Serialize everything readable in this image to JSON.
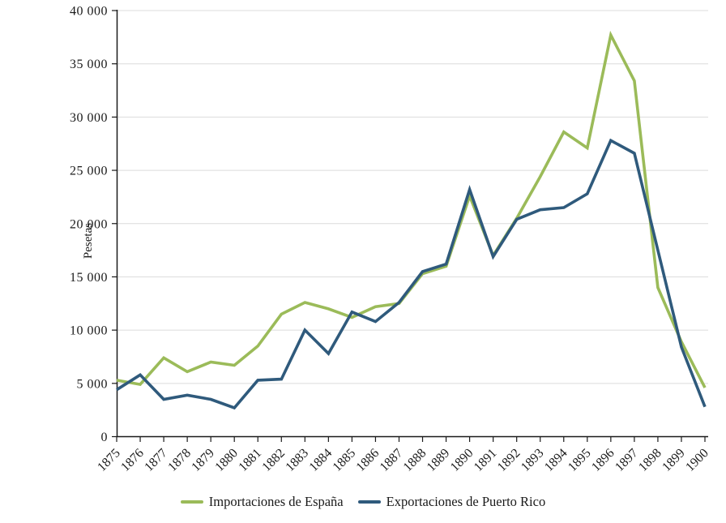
{
  "chart_data": {
    "type": "line",
    "x": [
      1875,
      1876,
      1877,
      1878,
      1879,
      1880,
      1881,
      1882,
      1883,
      1884,
      1885,
      1886,
      1887,
      1888,
      1889,
      1890,
      1891,
      1892,
      1893,
      1894,
      1895,
      1896,
      1897,
      1898,
      1899,
      1900
    ],
    "series": [
      {
        "name": "Importaciones de España",
        "color": "#9bbb59",
        "values": [
          5300,
          4900,
          7400,
          6100,
          7000,
          6700,
          8500,
          11500,
          12600,
          12000,
          11200,
          12200,
          12500,
          15300,
          16000,
          22600,
          17000,
          20500,
          24400,
          28600,
          27100,
          37700,
          33400,
          14000,
          8900,
          4600
        ]
      },
      {
        "name": "Exportaciones de Puerto Rico",
        "color": "#2f5a7c",
        "values": [
          4400,
          5800,
          3500,
          3900,
          3500,
          2700,
          5300,
          5400,
          10000,
          7800,
          11700,
          10800,
          12600,
          15500,
          16200,
          23200,
          16900,
          20400,
          21300,
          21500,
          22800,
          27800,
          26600,
          17500,
          8400,
          2800
        ]
      }
    ],
    "title": "",
    "xlabel": "",
    "ylabel": "Pesetas",
    "ylim": [
      0,
      40000
    ],
    "ytick_step": 5000,
    "ytick_labels": [
      "0",
      "5 000",
      "10 000",
      "15 000",
      "20 000",
      "25 000",
      "30 000",
      "35 000",
      "40 000"
    ],
    "grid": true,
    "legend_position": "bottom",
    "axis_color": "#1a1a1a",
    "gridline_color": "#dcdcdc"
  }
}
